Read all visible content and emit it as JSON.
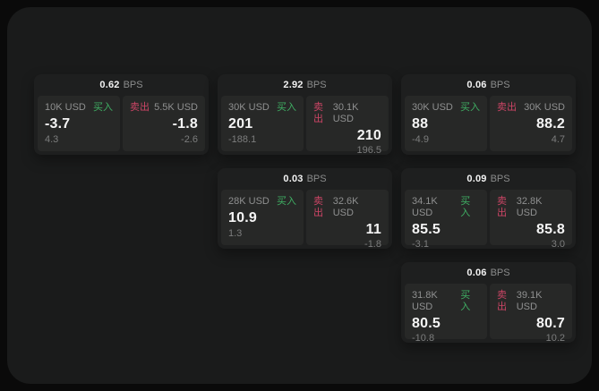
{
  "labels": {
    "bps": "BPS",
    "buy": "买入",
    "sell": "卖出"
  },
  "colors": {
    "background": "#0a0a0a",
    "panel": "#1a1b1b",
    "card": "#1e1f1f",
    "tile": "#272827",
    "buy_green": "#3fae63",
    "sell_red": "#cc4566"
  },
  "cards": [
    {
      "bps_value": "0.62",
      "buy_amount": "10K USD",
      "buy_value": "-3.7",
      "buy_sub": "4.3",
      "sell_amount": "5.5K USD",
      "sell_value": "-1.8",
      "sell_sub": "-2.6"
    },
    {
      "bps_value": "2.92",
      "buy_amount": "30K USD",
      "buy_value": "201",
      "buy_sub": "-188.1",
      "sell_amount": "30.1K USD",
      "sell_value": "210",
      "sell_sub": "196.5"
    },
    {
      "bps_value": "0.06",
      "buy_amount": "30K USD",
      "buy_value": "88",
      "buy_sub": "-4.9",
      "sell_amount": "30K USD",
      "sell_value": "88.2",
      "sell_sub": "4.7"
    },
    {
      "bps_value": "0.03",
      "buy_amount": "28K USD",
      "buy_value": "10.9",
      "buy_sub": "1.3",
      "sell_amount": "32.6K USD",
      "sell_value": "11",
      "sell_sub": "-1.8"
    },
    {
      "bps_value": "0.09",
      "buy_amount": "34.1K USD",
      "buy_value": "85.5",
      "buy_sub": "-3.1",
      "sell_amount": "32.8K USD",
      "sell_value": "85.8",
      "sell_sub": "3.0"
    },
    {
      "bps_value": "0.06",
      "buy_amount": "31.8K USD",
      "buy_value": "80.5",
      "buy_sub": "-10.8",
      "sell_amount": "39.1K USD",
      "sell_value": "80.7",
      "sell_sub": "10.2"
    }
  ]
}
